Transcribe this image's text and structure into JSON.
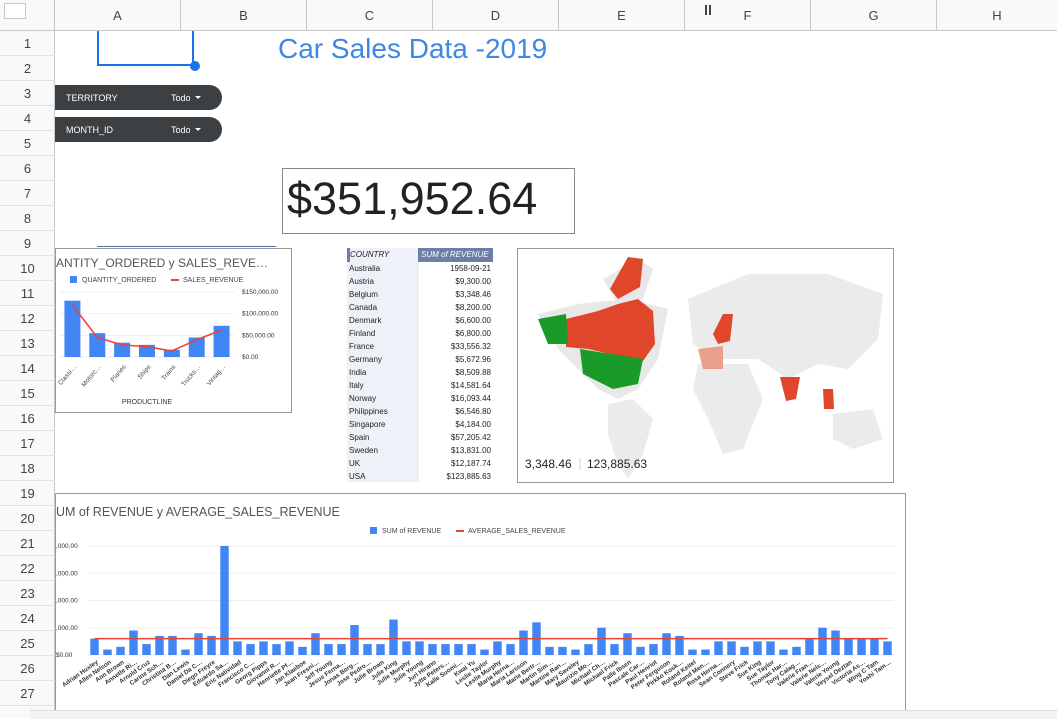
{
  "sheet": {
    "columns": [
      "A",
      "B",
      "C",
      "D",
      "E",
      "F",
      "G",
      "H"
    ],
    "rows": [
      "1",
      "2",
      "3",
      "4",
      "5",
      "6",
      "7",
      "8",
      "9",
      "10",
      "11",
      "12",
      "13",
      "14",
      "15",
      "16",
      "17",
      "18",
      "19",
      "20",
      "21",
      "22",
      "23",
      "24",
      "25",
      "26",
      "27"
    ]
  },
  "title": "Car Sales Data -2019",
  "filters": [
    {
      "label": "TERRITORY",
      "value": "Todo"
    },
    {
      "label": "MONTH_ID",
      "value": "Todo"
    }
  ],
  "scorecard": {
    "value": "$351,952.64"
  },
  "revenue_table": {
    "headers": [
      "COUNTRY",
      "SUM of REVENUE"
    ],
    "rows": [
      [
        "Australia",
        "1958-09-21"
      ],
      [
        "Austria",
        "$9,300.00"
      ],
      [
        "Belgium",
        "$3,348.46"
      ],
      [
        "Canada",
        "$8,200.00"
      ],
      [
        "Denmark",
        "$6,600.00"
      ],
      [
        "Finland",
        "$6,800.00"
      ],
      [
        "France",
        "$33,556.32"
      ],
      [
        "Germany",
        "$5,672.96"
      ],
      [
        "India",
        "$8,509.88"
      ],
      [
        "Italy",
        "$14,581.64"
      ],
      [
        "Norway",
        "$16,093.44"
      ],
      [
        "Philippines",
        "$6,546.80"
      ],
      [
        "Singapore",
        "$4,184.00"
      ],
      [
        "Spain",
        "$57,205.42"
      ],
      [
        "Sweden",
        "$13,831.00"
      ],
      [
        "UK",
        "$12,187.74"
      ],
      [
        "USA",
        "$123,885.63"
      ]
    ]
  },
  "geo_map": {
    "legend_min": "3,348.46",
    "legend_max": "123,885.63",
    "high_color": "#e0472a",
    "mid_color": "#1a9a28"
  },
  "chart_data": [
    {
      "type": "bar",
      "title": "ANTITY_ORDERED y SALES_REVE…",
      "xlabel": "PRODUCTLINE",
      "categories": [
        "Classi…",
        "Motorc…",
        "Planes",
        "Ships",
        "Trains",
        "Trucks…",
        "Vintag…"
      ],
      "series": [
        {
          "name": "QUANTITY_ORDERED",
          "type": "bar",
          "color": "#4285f4",
          "values": [
            130000,
            55000,
            33000,
            28000,
            17000,
            45000,
            72000
          ]
        },
        {
          "name": "SALES_REVENUE",
          "type": "line",
          "color": "#ea4335",
          "values": [
            120000,
            45000,
            28000,
            24000,
            14000,
            40000,
            62000
          ]
        }
      ],
      "yticks": [
        "$150,000.00",
        "$100,000.00",
        "$50,000.00",
        "$0.00"
      ],
      "ylim": [
        0,
        150000
      ]
    },
    {
      "type": "bar",
      "title": "UM of REVENUE y AVERAGE_SALES_REVENUE",
      "categories": [
        "Adrian Huxley",
        "Allen Nelson",
        "Ann Brown",
        "Annette Ri…",
        "Arnold Cruz",
        "Carine Sch…",
        "Christina B…",
        "Dan Lewis",
        "Daniel Da C…",
        "Diego Freyre",
        "Eduardo Sa…",
        "Eric Natividad",
        "Francisco C…",
        "Georg Pipps",
        "Giovanni R…",
        "Henriette Pf…",
        "Jan Klaeboe",
        "Jean Fresni…",
        "Jeff Young",
        "Jesus Ferna…",
        "Jonas Berg…",
        "Jose Pedro…",
        "Julie Brown",
        "Julie King",
        "Julie Murphy",
        "Julie Young",
        "Juri Hirano",
        "Jytte Peters…",
        "Kalle Suomi…",
        "Kwai Yu",
        "Leslie Taylor",
        "Leslie Murphy",
        "Maria Hernа…",
        "Maria Larsson",
        "Marie Bertr…",
        "Martin Sim…",
        "Martine Ran…",
        "Mary Saveley",
        "Maurizio Mo…",
        "Michael Ch…",
        "Michael Frick",
        "Palle Ibsen",
        "Pascale Car…",
        "Paul Henriot",
        "Peter Ferguson",
        "Pirkko Kosk…",
        "Roland Keitel",
        "Roland Men…",
        "Rosa Herna…",
        "Sean Connery",
        "Steve Frick",
        "Sue King",
        "Sue Taylor",
        "Thomas Har…",
        "Tony Calag…",
        "Valerie Fran…",
        "Valerie Nels…",
        "Valerie Young",
        "Veysel Oeztan",
        "Victoria As…",
        "Wing C Tam",
        "Yoshi Tam…"
      ],
      "series": [
        {
          "name": "SUM of REVENUE",
          "type": "bar",
          "color": "#4285f4",
          "values": [
            6,
            2,
            3,
            9,
            4,
            7,
            7,
            2,
            8,
            7,
            40,
            5,
            4,
            5,
            4,
            5,
            3,
            8,
            4,
            4,
            11,
            4,
            4,
            13,
            5,
            5,
            4,
            4,
            4,
            4,
            2,
            5,
            4,
            9,
            12,
            3,
            3,
            2,
            4,
            10,
            4,
            8,
            3,
            4,
            8,
            7,
            2,
            2,
            5,
            5,
            3,
            5,
            5,
            2,
            3,
            6,
            10,
            9,
            6,
            6,
            6,
            5
          ]
        },
        {
          "name": "AVERAGE_SALES_REVENUE",
          "type": "line",
          "color": "#ea4335",
          "values": [
            6,
            6,
            6,
            6,
            6,
            6,
            6,
            6,
            6,
            6,
            6,
            6,
            6,
            6,
            6,
            6,
            6,
            6,
            6,
            6,
            6,
            6,
            6,
            6,
            6,
            6,
            6,
            6,
            6,
            6,
            6,
            6,
            6,
            6,
            6,
            6,
            6,
            6,
            6,
            6,
            6,
            6,
            6,
            6,
            6,
            6,
            6,
            6,
            6,
            6,
            6,
            6,
            6,
            6,
            6,
            6,
            6,
            6,
            6,
            6,
            6,
            6
          ]
        }
      ],
      "yticks": [
        ",000.00",
        ",000.00",
        ",000.00",
        ",000.00",
        "$0.00"
      ],
      "ylim": [
        0,
        40
      ]
    }
  ]
}
